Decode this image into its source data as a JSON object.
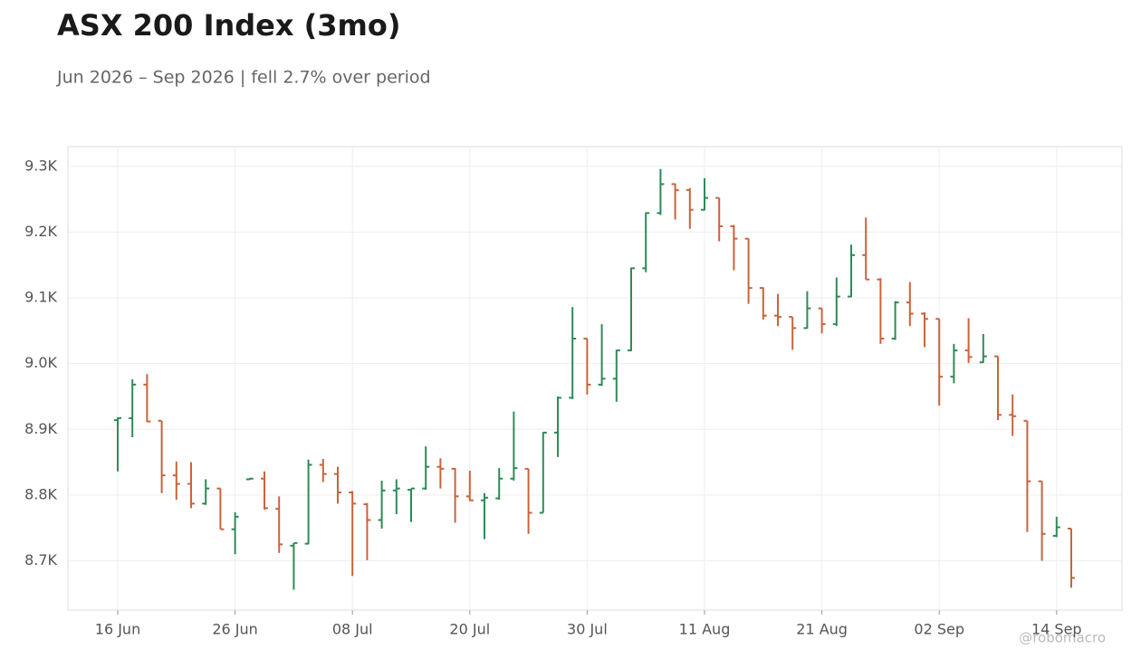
{
  "chart_data": {
    "type": "ohlc",
    "title": "ASX 200 Index (3mo)",
    "subtitle": "Jun 2026 – Sep 2026 | fell 2.7% over period",
    "watermark": "@robomacro",
    "up_color": "#2e8b57",
    "down_color": "#c8643c",
    "grid": true,
    "categories": [
      "16 Jun",
      null,
      null,
      null,
      null,
      null,
      null,
      null,
      "26 Jun",
      null,
      null,
      null,
      null,
      null,
      null,
      null,
      "08 Jul",
      null,
      null,
      null,
      null,
      null,
      null,
      null,
      "20 Jul",
      null,
      null,
      null,
      null,
      null,
      null,
      null,
      "30 Jul",
      null,
      null,
      null,
      null,
      null,
      null,
      null,
      "11 Aug",
      null,
      null,
      null,
      null,
      null,
      null,
      null,
      "21 Aug",
      null,
      null,
      null,
      null,
      null,
      null,
      null,
      "02 Sep",
      null,
      null,
      null,
      null,
      null,
      null,
      null,
      "14 Sep",
      null
    ],
    "open": [
      8914,
      8917,
      8968,
      8913,
      8830,
      8817,
      8787,
      8810,
      8748,
      8824,
      8825,
      8779,
      8723,
      8726,
      8846,
      8832,
      8804,
      8786,
      8762,
      8807,
      8808,
      8810,
      8843,
      8840,
      8798,
      8792,
      8795,
      8825,
      8840,
      8773,
      8895,
      8948,
      9038,
      8968,
      8977,
      9020,
      9145,
      9229,
      9273,
      9264,
      9234,
      9252,
      9209,
      9190,
      9115,
      9073,
      9071,
      9054,
      9084,
      9060,
      9102,
      9165,
      9128,
      9038,
      9093,
      9076,
      9068,
      8980,
      9020,
      9002,
      9011,
      8922,
      8913,
      8821,
      8738,
      8749
    ],
    "high": [
      8918,
      8976,
      8984,
      8913,
      8851,
      8850,
      8824,
      8810,
      8774,
      8826,
      8836,
      8798,
      8727,
      8854,
      8855,
      8843,
      8806,
      8788,
      8822,
      8824,
      8810,
      8874,
      8856,
      8841,
      8837,
      8803,
      8841,
      8927,
      8840,
      8896,
      8950,
      9086,
      9038,
      9060,
      9021,
      9146,
      9230,
      9296,
      9274,
      9267,
      9282,
      9252,
      9211,
      9190,
      9116,
      9106,
      9071,
      9110,
      9084,
      9131,
      9181,
      9222,
      9130,
      9095,
      9124,
      9078,
      9068,
      9030,
      9069,
      9045,
      9011,
      8953,
      8913,
      8821,
      8767,
      8749
    ],
    "low": [
      8836,
      8888,
      8911,
      8803,
      8793,
      8780,
      8785,
      8748,
      8710,
      8823,
      8778,
      8712,
      8656,
      8725,
      8820,
      8787,
      8677,
      8701,
      8749,
      8771,
      8759,
      8808,
      8810,
      8758,
      8791,
      8733,
      8793,
      8822,
      8741,
      8773,
      8858,
      8946,
      8953,
      8966,
      8942,
      9019,
      9139,
      9226,
      9219,
      9205,
      9233,
      9186,
      9142,
      9091,
      9067,
      9057,
      9021,
      9053,
      9046,
      9057,
      9101,
      9128,
      9030,
      9036,
      9057,
      9025,
      8936,
      8970,
      9001,
      9001,
      8914,
      8890,
      8744,
      8700,
      8736,
      8659
    ],
    "close": [
      8917,
      8968,
      8912,
      8830,
      8817,
      8787,
      8810,
      8748,
      8767,
      8825,
      8780,
      8725,
      8727,
      8846,
      8832,
      8804,
      8787,
      8762,
      8807,
      8810,
      8810,
      8843,
      8840,
      8798,
      8792,
      8796,
      8825,
      8841,
      8773,
      8895,
      8948,
      9038,
      8968,
      8977,
      9020,
      9145,
      9229,
      9273,
      9264,
      9234,
      9252,
      9209,
      9190,
      9115,
      9073,
      9071,
      9054,
      9084,
      9060,
      9102,
      9165,
      9128,
      9038,
      9093,
      9076,
      9068,
      8980,
      9020,
      9010,
      9011,
      8922,
      8920,
      8821,
      8741,
      8751,
      8674
    ],
    "ylim": [
      8625,
      9330
    ],
    "yticks": [
      {
        "value": 8700,
        "label": "8.7K"
      },
      {
        "value": 8800,
        "label": "8.8K"
      },
      {
        "value": 8900,
        "label": "8.9K"
      },
      {
        "value": 9000,
        "label": "9.0K"
      },
      {
        "value": 9100,
        "label": "9.1K"
      },
      {
        "value": 9200,
        "label": "9.2K"
      },
      {
        "value": 9300,
        "label": "9.3K"
      }
    ]
  }
}
